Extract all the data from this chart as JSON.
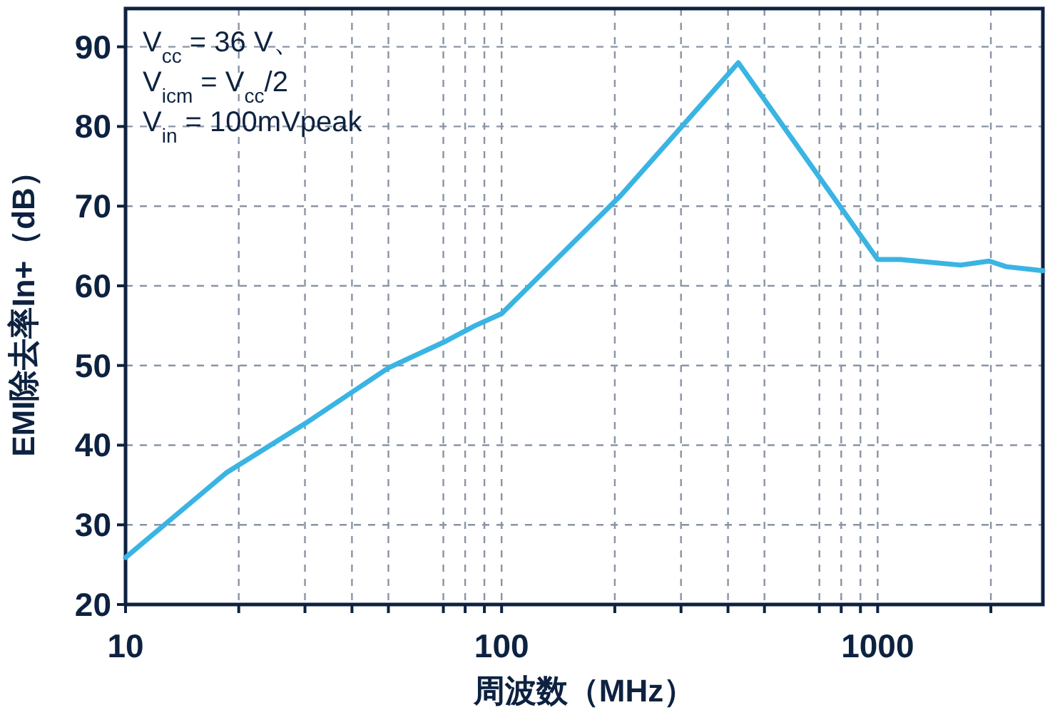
{
  "chart_data": {
    "type": "line",
    "xlabel": "周波数（MHz）",
    "ylabel": "EMI除去率In+（dB）",
    "annotations": [
      "V$_{cc}$ = 36 V、",
      "V$_{icm}$ = V$_{cc}$/2",
      "V$_{in}$ = 100mVpeak"
    ],
    "log": "x",
    "x": [
      10,
      18.5,
      30,
      50,
      70,
      85,
      100,
      208,
      426,
      1000,
      1150,
      1660,
      1980,
      2200,
      2750
    ],
    "series": [
      {
        "color": "#3ab4e3",
        "values": [
          25.9,
          36.5,
          42.7,
          49.7,
          52.9,
          55.0,
          56.5,
          71.4,
          88.0,
          63.3,
          63.3,
          62.6,
          63.1,
          62.4,
          61.9
        ]
      }
    ],
    "xlim": [
      10,
      2750
    ],
    "ylim": [
      20,
      94.8
    ],
    "xticks": [
      10,
      {
        "value": 20,
        "label": null
      },
      {
        "value": 30,
        "label": null
      },
      {
        "value": 40,
        "label": null
      },
      {
        "value": 50,
        "label": null
      },
      {
        "value": 70,
        "label": null
      },
      {
        "value": 80,
        "label": null
      },
      {
        "value": 90,
        "label": null
      },
      100,
      {
        "value": 200,
        "label": null
      },
      {
        "value": 300,
        "label": null
      },
      {
        "value": 400,
        "label": null
      },
      {
        "value": 500,
        "label": null
      },
      {
        "value": 700,
        "label": null
      },
      {
        "value": 800,
        "label": null
      },
      {
        "value": 900,
        "label": null
      },
      1000,
      {
        "value": 2000,
        "label": null
      }
    ],
    "yticks": [
      20,
      30,
      40,
      50,
      60,
      70,
      80,
      90
    ],
    "grid": true,
    "marker": "none",
    "line_style": "solid"
  }
}
